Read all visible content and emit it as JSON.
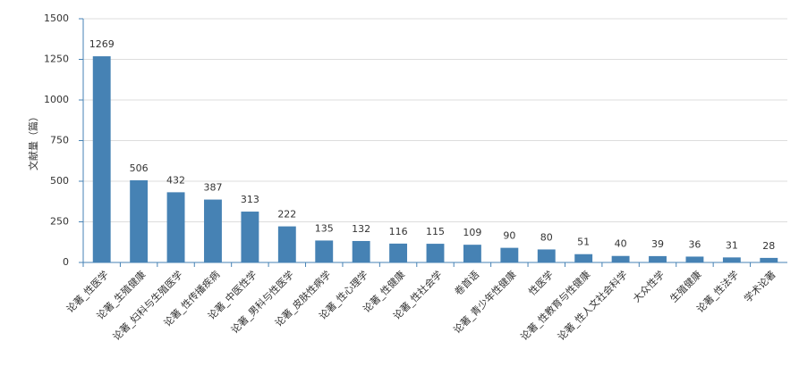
{
  "chart_data": {
    "type": "bar",
    "y_label": "文献量（篇）",
    "categories": [
      "论著_性医学",
      "论著_生殖健康",
      "论著_妇科与生殖医学",
      "论著_性传播疾病",
      "论著_中医性学",
      "论著_男科与性医学",
      "论著_皮肤性病学",
      "论著_性心理学",
      "论著_性健康",
      "论著_性社会学",
      "卷首语",
      "论著_青少年性健康",
      "性医学",
      "论著_性教育与性健康",
      "论著_性人文社会科学",
      "大众性学",
      "生殖健康",
      "论著_性法学",
      "学术论著"
    ],
    "values": [
      1269,
      506,
      432,
      387,
      313,
      222,
      135,
      132,
      116,
      115,
      109,
      90,
      80,
      51,
      40,
      39,
      36,
      31,
      28
    ],
    "color": "#4682b4",
    "ylim": [
      0,
      1500
    ],
    "yticks": [
      0,
      250,
      500,
      750,
      1000,
      1250,
      1500
    ],
    "grid": true
  }
}
